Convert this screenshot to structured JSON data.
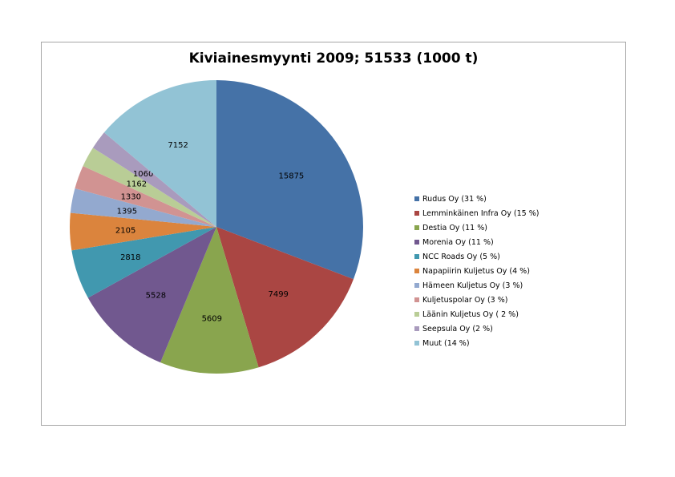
{
  "chart_data": {
    "type": "pie",
    "title": "Kiviainesmyynti 2009; 51533 (1000 t)",
    "slices": [
      {
        "name": "Rudus Oy (31 %)",
        "value": 15875,
        "label": "15875",
        "color": "#4572a7"
      },
      {
        "name": "Lemminkäinen Infra Oy (15 %)",
        "value": 7499,
        "label": "7499",
        "color": "#aa4643"
      },
      {
        "name": "Destia Oy (11 %)",
        "value": 5609,
        "label": "5609",
        "color": "#89a54e"
      },
      {
        "name": "Morenia Oy (11 %)",
        "value": 5528,
        "label": "5528",
        "color": "#71588f"
      },
      {
        "name": "NCC Roads Oy (5 %)",
        "value": 2818,
        "label": "2818",
        "color": "#4198af"
      },
      {
        "name": "Napapiirin Kuljetus Oy (4 %)",
        "value": 2105,
        "label": "2105",
        "color": "#db843d"
      },
      {
        "name": "Hämeen Kuljetus Oy (3 %)",
        "value": 1395,
        "label": "1395",
        "color": "#93a9cf"
      },
      {
        "name": "Kuljetuspolar Oy (3 %)",
        "value": 1330,
        "label": "1330",
        "color": "#d19392"
      },
      {
        "name": "Läänin Kuljetus Oy ( 2 %)",
        "value": 1162,
        "label": "1162",
        "color": "#b9cd96"
      },
      {
        "name": "Seepsula Oy (2 %)",
        "value": 1060,
        "label": "1060",
        "color": "#a99bbd"
      },
      {
        "name": "Muut (14 %)",
        "value": 7152,
        "label": "7152",
        "color": "#92c3d5"
      }
    ],
    "legend_position": "right"
  }
}
